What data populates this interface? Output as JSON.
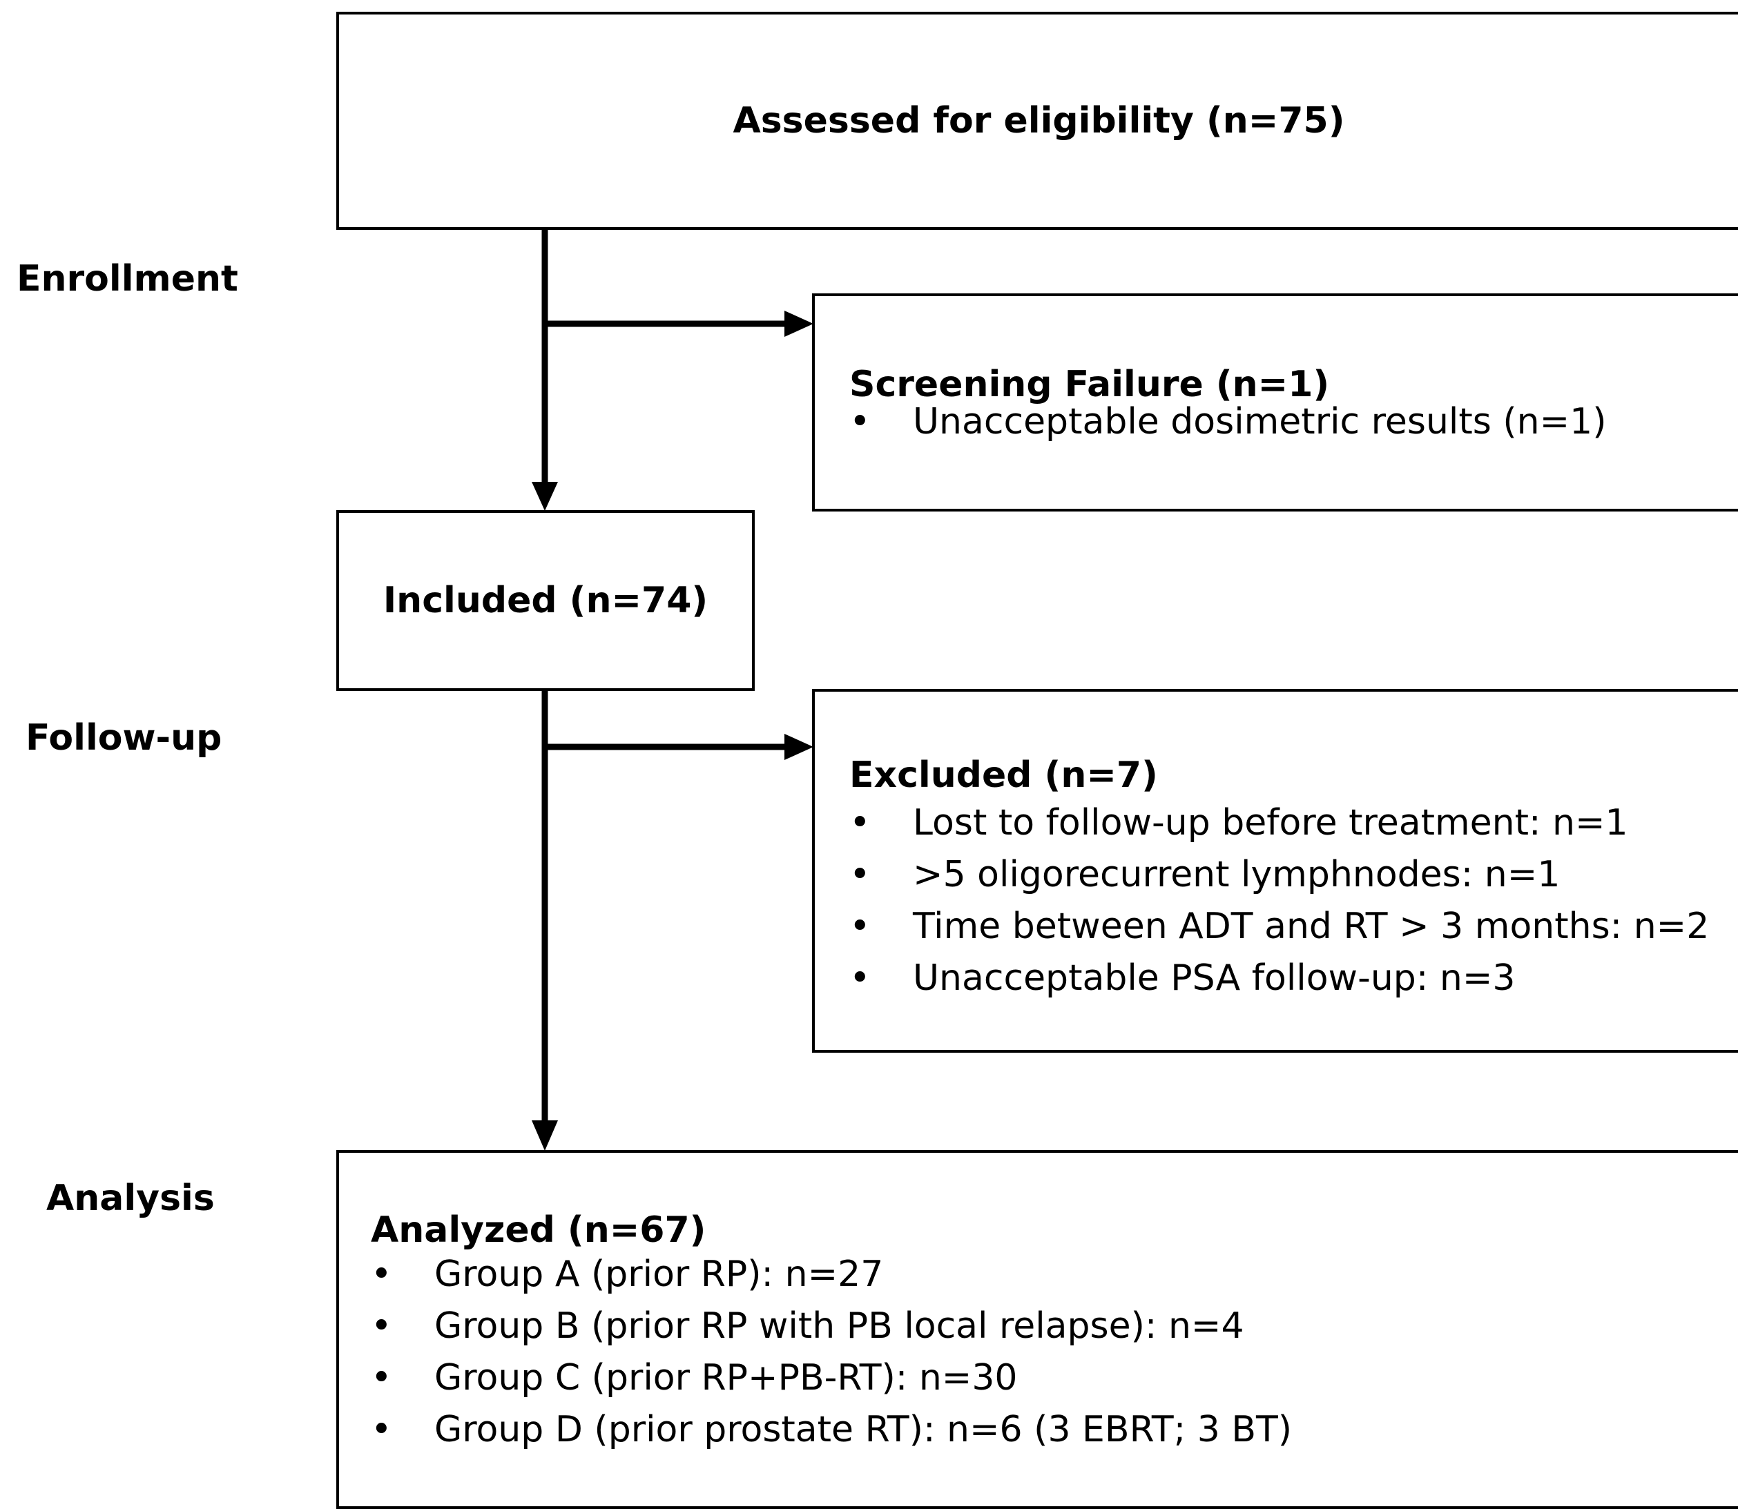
{
  "stages": {
    "enrollment": "Enrollment",
    "follow_up": "Follow-up",
    "analysis": "Analysis"
  },
  "boxes": {
    "assessed": {
      "title": "Assessed for eligibility (n=75)"
    },
    "screening_failure": {
      "title": "Screening Failure (n=1)",
      "items": [
        "Unacceptable dosimetric results (n=1)"
      ]
    },
    "included": {
      "title": "Included (n=74)"
    },
    "excluded": {
      "title": "Excluded (n=7)",
      "items": [
        "Lost to follow-up before treatment: n=1",
        ">5 oligorecurrent lymphnodes: n=1",
        "Time between ADT and RT > 3 months: n=2",
        "Unacceptable PSA follow-up: n=3"
      ]
    },
    "analyzed": {
      "title": "Analyzed (n=67)",
      "items": [
        "Group A (prior RP): n=27",
        "Group B (prior RP with PB local relapse): n=4",
        "Group C (prior RP+PB-RT): n=30",
        "Group D (prior prostate RT): n=6 (3 EBRT; 3 BT)"
      ]
    }
  },
  "bullet_glyph": "•"
}
